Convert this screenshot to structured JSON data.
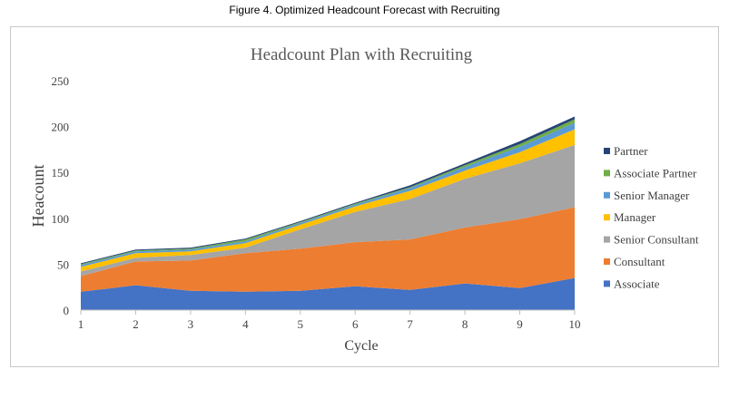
{
  "caption": "Figure 4. Optimized Headcount Forecast with Recruiting",
  "chart_data": {
    "type": "area",
    "stacked": true,
    "title": "Headcount Plan with Recruiting",
    "xlabel": "Cycle",
    "ylabel": "Heacount",
    "x": [
      1,
      2,
      3,
      4,
      5,
      6,
      7,
      8,
      9,
      10
    ],
    "ylim": [
      0,
      250
    ],
    "yticks": [
      0,
      50,
      100,
      150,
      200,
      250
    ],
    "grid": false,
    "legend_position": "right",
    "series": [
      {
        "name": "Associate",
        "color": "#4472c4",
        "values": [
          20,
          27,
          21,
          20,
          21,
          26,
          22,
          29,
          24,
          35
        ]
      },
      {
        "name": "Consultant",
        "color": "#ed7d31",
        "values": [
          17,
          26,
          33,
          42,
          46,
          48,
          55,
          61,
          75,
          77
        ]
      },
      {
        "name": "Senior Consultant",
        "color": "#a5a5a5",
        "values": [
          5,
          4,
          6,
          6,
          21,
          33,
          44,
          53,
          61,
          68
        ]
      },
      {
        "name": "Manager",
        "color": "#ffc000",
        "values": [
          5,
          5,
          4,
          5,
          5,
          6,
          9,
          9,
          12,
          17
        ]
      },
      {
        "name": "Senior Manager",
        "color": "#5b9bd5",
        "values": [
          2,
          2,
          2,
          2,
          2,
          2,
          3,
          4,
          6,
          7
        ]
      },
      {
        "name": "Associate Partner",
        "color": "#70ad47",
        "values": [
          1,
          1,
          1,
          2,
          1,
          1,
          1,
          2,
          3,
          4
        ]
      },
      {
        "name": "Partner",
        "color": "#264478",
        "values": [
          1,
          1,
          1,
          1,
          1,
          1,
          2,
          2,
          3,
          3
        ]
      }
    ]
  }
}
